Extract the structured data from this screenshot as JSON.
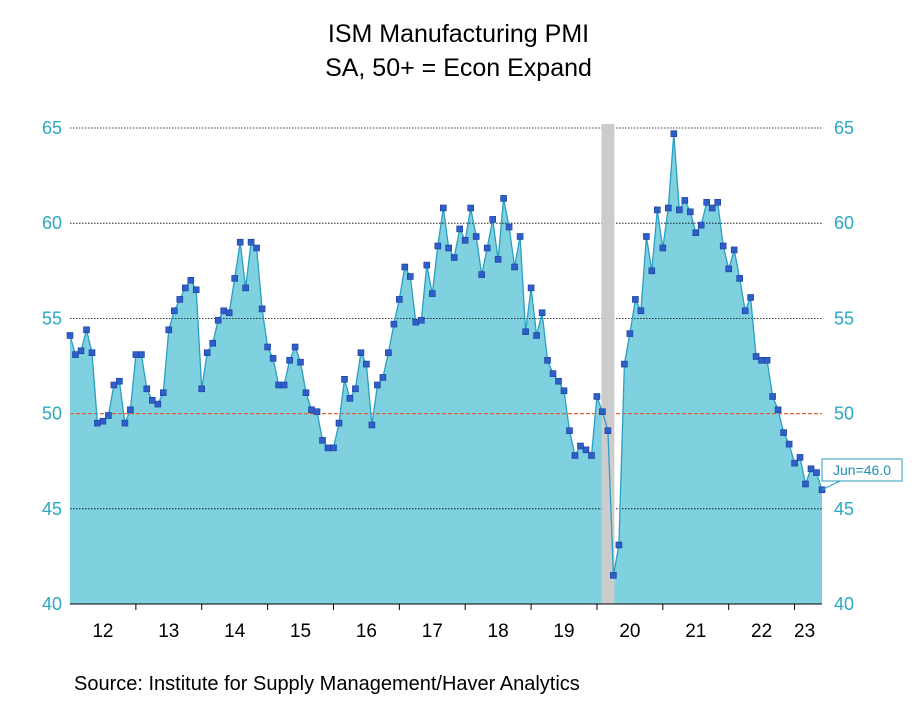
{
  "chart_data": {
    "type": "area",
    "title": "ISM Manufacturing PMI",
    "subtitle": "SA, 50+ = Econ Expand",
    "ylim": [
      40,
      65
    ],
    "y_ticks": [
      "40",
      "45",
      "50",
      "55",
      "60",
      "65"
    ],
    "x_ticks": [
      "12",
      "13",
      "14",
      "15",
      "16",
      "17",
      "18",
      "19",
      "20",
      "21",
      "22",
      "23"
    ],
    "reference_line": 50,
    "recession_band": {
      "start": "2020-02",
      "end": "2020-04"
    },
    "start_month": "2012-01",
    "end_month": "2023-06",
    "callout": "Jun=46.0",
    "grid": true,
    "colors": {
      "area": "#7fd1e0",
      "line": "#2a9fc2",
      "marker": "#2d5ec9",
      "axis_text": "#2aa8c4",
      "reference": "#e0653a",
      "recession": "#cccccc"
    },
    "values": [
      54.1,
      53.1,
      53.3,
      54.4,
      53.2,
      49.5,
      49.6,
      49.9,
      51.5,
      51.7,
      49.5,
      50.2,
      53.1,
      53.1,
      51.3,
      50.7,
      50.5,
      51.1,
      54.4,
      55.4,
      56.0,
      56.6,
      57.0,
      56.5,
      51.3,
      53.2,
      53.7,
      54.9,
      55.4,
      55.3,
      57.1,
      59.0,
      56.6,
      59.0,
      58.7,
      55.5,
      53.5,
      52.9,
      51.5,
      51.5,
      52.8,
      53.5,
      52.7,
      51.1,
      50.2,
      50.1,
      48.6,
      48.2,
      48.2,
      49.5,
      51.8,
      50.8,
      51.3,
      53.2,
      52.6,
      49.4,
      51.5,
      51.9,
      53.2,
      54.7,
      56.0,
      57.7,
      57.2,
      54.8,
      54.9,
      57.8,
      56.3,
      58.8,
      60.8,
      58.7,
      58.2,
      59.7,
      59.1,
      60.8,
      59.3,
      57.3,
      58.7,
      60.2,
      58.1,
      61.3,
      59.8,
      57.7,
      59.3,
      54.3,
      56.6,
      54.1,
      55.3,
      52.8,
      52.1,
      51.7,
      51.2,
      49.1,
      47.8,
      48.3,
      48.1,
      47.8,
      50.9,
      50.1,
      49.1,
      41.5,
      43.1,
      52.6,
      54.2,
      56.0,
      55.4,
      59.3,
      57.5,
      60.7,
      58.7,
      60.8,
      64.7,
      60.7,
      61.2,
      60.6,
      59.5,
      59.9,
      61.1,
      60.8,
      61.1,
      58.8,
      57.6,
      58.6,
      57.1,
      55.4,
      56.1,
      53.0,
      52.8,
      52.8,
      50.9,
      50.2,
      49.0,
      48.4,
      47.4,
      47.7,
      46.3,
      47.1,
      46.9,
      46.0
    ]
  },
  "source": "Source:  Institute for Supply Management/Haver Analytics"
}
